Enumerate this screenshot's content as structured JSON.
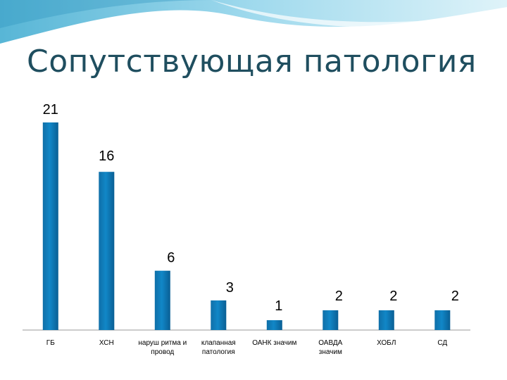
{
  "slide": {
    "title": "Сопутствующая патология",
    "accent_color": "#5bb8d6"
  },
  "chart_data": {
    "type": "bar",
    "title": "",
    "xlabel": "",
    "ylabel": "",
    "ylim": [
      0,
      21
    ],
    "grid": false,
    "legend": "none",
    "bar_color": "#1187c7",
    "categories": [
      [
        "ГБ"
      ],
      [
        "ХСН"
      ],
      [
        "наруш ритма и",
        "провод"
      ],
      [
        "клапанная",
        "патология"
      ],
      [
        "ОАНК значим"
      ],
      [
        "ОАВДА",
        "значим"
      ],
      [
        "ХОБЛ"
      ],
      [
        "СД"
      ]
    ],
    "values": [
      21,
      16,
      6,
      3,
      1,
      2,
      2,
      2
    ]
  }
}
